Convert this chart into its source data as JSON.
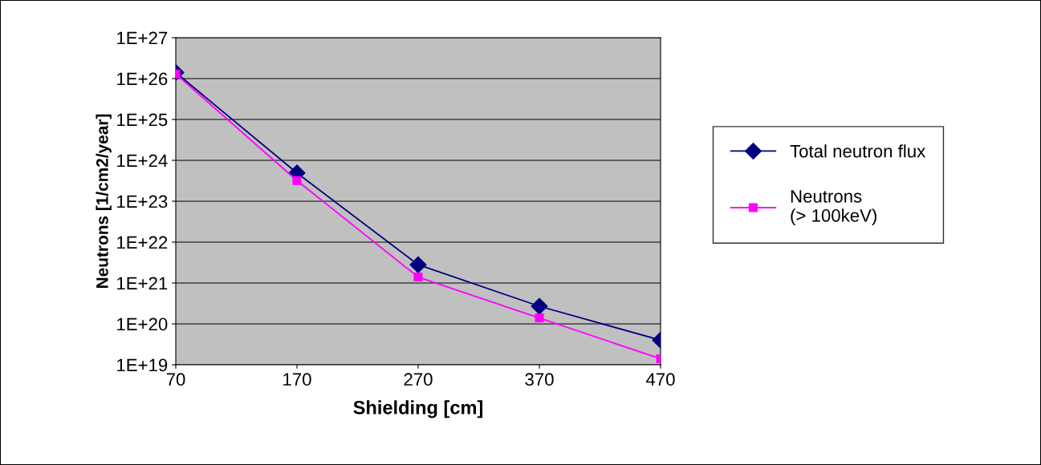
{
  "chart_data": {
    "type": "line",
    "xlabel": "Shielding [cm]",
    "ylabel": "Neutrons [1/cm2/year]",
    "x": [
      70,
      170,
      270,
      370,
      470
    ],
    "series": [
      {
        "name": "Total neutron flux",
        "color": "#000080",
        "marker": "diamond",
        "values": [
          1.4e+26,
          4.9e+23,
          2.8e+21,
          2.7e+20,
          4e+19
        ]
      },
      {
        "name": "Neutrons\n(> 100keV)",
        "color": "#ff00ff",
        "marker": "square",
        "values": [
          1.3e+26,
          3.2e+23,
          1.4e+21,
          1.4e+20,
          1.4e+19
        ]
      }
    ],
    "log": "y",
    "xlim": [
      70,
      470
    ],
    "xticks": [
      70,
      170,
      270,
      370,
      470
    ],
    "ylim": [
      1e+19,
      1e+27
    ],
    "yticks": [
      {
        "value": 1e+19,
        "label": "1E+19"
      },
      {
        "value": 1e+20,
        "label": "1E+20"
      },
      {
        "value": 1e+21,
        "label": "1E+21"
      },
      {
        "value": 1e+22,
        "label": "1E+22"
      },
      {
        "value": 1e+23,
        "label": "1E+23"
      },
      {
        "value": 1e+24,
        "label": "1E+24"
      },
      {
        "value": 1e+25,
        "label": "1E+25"
      },
      {
        "value": 1e+26,
        "label": "1E+26"
      },
      {
        "value": 1e+27,
        "label": "1E+27"
      }
    ],
    "grid": "y",
    "legend": "right"
  }
}
